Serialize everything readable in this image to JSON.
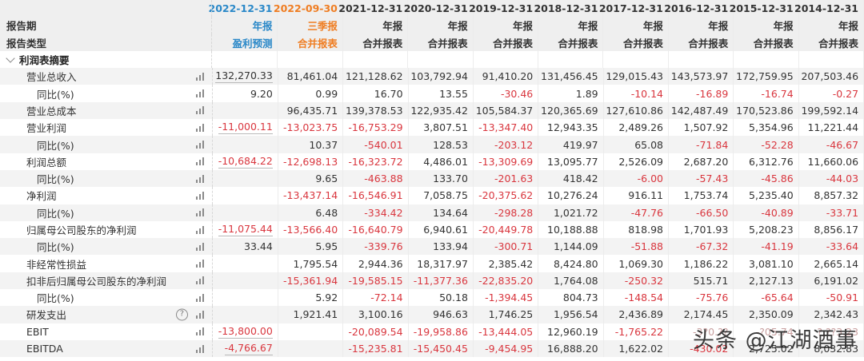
{
  "header": {
    "row_labels": {
      "period": "报告期",
      "type": "报告类型"
    },
    "columns": [
      {
        "date": "2022-12-31",
        "period": "年报",
        "type": "盈利预测",
        "color": "#2a88c8"
      },
      {
        "date": "2022-09-30",
        "period": "三季报",
        "type": "合并报表",
        "color": "#ef7d22"
      },
      {
        "date": "2021-12-31",
        "period": "年报",
        "type": "合并报表"
      },
      {
        "date": "2020-12-31",
        "period": "年报",
        "type": "合并报表"
      },
      {
        "date": "2019-12-31",
        "period": "年报",
        "type": "合并报表"
      },
      {
        "date": "2018-12-31",
        "period": "年报",
        "type": "合并报表"
      },
      {
        "date": "2017-12-31",
        "period": "年报",
        "type": "合并报表"
      },
      {
        "date": "2016-12-31",
        "period": "年报",
        "type": "合并报表"
      },
      {
        "date": "2015-12-31",
        "period": "年报",
        "type": "合并报表"
      },
      {
        "date": "2014-12-31",
        "period": "年报",
        "type": "合并报表"
      }
    ]
  },
  "section": {
    "title": "利润表摘要",
    "expanded": true
  },
  "rows": [
    {
      "label": "营业总收入",
      "level": 1,
      "values": [
        "132,270.33",
        "81,461.04",
        "121,128.62",
        "103,792.94",
        "91,410.20",
        "131,456.45",
        "129,015.43",
        "143,573.97",
        "172,759.95",
        "207,503.46"
      ]
    },
    {
      "label": "同比(%)",
      "level": 2,
      "values": [
        "9.20",
        "0.99",
        "16.70",
        "13.55",
        "-30.46",
        "1.89",
        "-10.14",
        "-16.89",
        "-16.74",
        "-0.27"
      ]
    },
    {
      "label": "营业总成本",
      "level": 1,
      "values": [
        "",
        "96,435.71",
        "139,378.53",
        "122,935.42",
        "105,584.37",
        "120,365.69",
        "127,610.86",
        "142,487.49",
        "170,523.86",
        "199,592.14"
      ]
    },
    {
      "label": "营业利润",
      "level": 1,
      "values": [
        "-11,000.11",
        "-13,023.75",
        "-16,753.29",
        "3,807.51",
        "-13,347.40",
        "12,943.35",
        "2,489.26",
        "1,507.92",
        "5,354.96",
        "11,221.44"
      ]
    },
    {
      "label": "同比(%)",
      "level": 2,
      "values": [
        "",
        "10.37",
        "-540.01",
        "128.53",
        "-203.12",
        "419.97",
        "65.08",
        "-71.84",
        "-52.28",
        "-46.67"
      ]
    },
    {
      "label": "利润总额",
      "level": 1,
      "values": [
        "-10,684.22",
        "-12,698.13",
        "-16,323.72",
        "4,486.01",
        "-13,309.69",
        "13,095.77",
        "2,526.09",
        "2,687.20",
        "6,312.76",
        "11,660.06"
      ]
    },
    {
      "label": "同比(%)",
      "level": 2,
      "values": [
        "",
        "9.65",
        "-463.88",
        "133.70",
        "-201.63",
        "418.42",
        "-6.00",
        "-57.43",
        "-45.86",
        "-44.03"
      ]
    },
    {
      "label": "净利润",
      "level": 1,
      "values": [
        "",
        "-13,437.14",
        "-16,546.91",
        "7,058.75",
        "-20,375.62",
        "10,276.24",
        "916.11",
        "1,753.74",
        "5,235.40",
        "8,857.32"
      ]
    },
    {
      "label": "同比(%)",
      "level": 2,
      "values": [
        "",
        "6.48",
        "-334.42",
        "134.64",
        "-298.28",
        "1,021.72",
        "-47.76",
        "-66.50",
        "-40.89",
        "-33.71"
      ]
    },
    {
      "label": "归属母公司股东的净利润",
      "level": 1,
      "values": [
        "-11,075.44",
        "-13,566.40",
        "-16,640.79",
        "6,940.61",
        "-20,449.78",
        "10,188.88",
        "818.98",
        "1,701.93",
        "5,208.23",
        "8,856.17"
      ]
    },
    {
      "label": "同比(%)",
      "level": 2,
      "values": [
        "33.44",
        "5.95",
        "-339.76",
        "133.94",
        "-300.71",
        "1,144.09",
        "-51.88",
        "-67.32",
        "-41.19",
        "-33.64"
      ]
    },
    {
      "label": "非经常性损益",
      "level": 1,
      "values": [
        "",
        "1,795.54",
        "2,944.36",
        "18,317.97",
        "2,385.42",
        "8,424.80",
        "1,069.30",
        "1,186.22",
        "3,081.10",
        "2,665.14"
      ]
    },
    {
      "label": "扣非后归属母公司股东的净利润",
      "level": 1,
      "values": [
        "",
        "-15,361.94",
        "-19,585.15",
        "-11,377.36",
        "-22,835.20",
        "1,764.08",
        "-250.32",
        "515.71",
        "2,127.13",
        "6,191.02"
      ]
    },
    {
      "label": "同比(%)",
      "level": 2,
      "values": [
        "",
        "5.92",
        "-72.14",
        "50.18",
        "-1,394.45",
        "804.73",
        "-148.54",
        "-75.76",
        "-65.64",
        "-50.91"
      ]
    },
    {
      "label": "研发支出",
      "level": 1,
      "help": true,
      "values": [
        "",
        "1,921.41",
        "3,100.16",
        "946.63",
        "1,746.25",
        "1,956.54",
        "2,436.89",
        "2,174.45",
        "2,350.09",
        "2,342.43"
      ]
    },
    {
      "label": "EBIT",
      "level": 1,
      "values": [
        "-13,800.00",
        "",
        "-20,089.54",
        "-19,958.86",
        "-13,444.05",
        "12,960.19",
        "-1,765.22",
        null,
        null,
        null
      ],
      "obscured_fragments": {
        "7": "-3?0.??",
        "8": "-?05.74",
        "9": "?,??3.23"
      }
    },
    {
      "label": "EBITDA",
      "level": 1,
      "values": [
        "-4,766.67",
        "",
        "-15,235.81",
        "-15,450.45",
        "-9,454.95",
        "16,888.20",
        "1,622.02",
        "-430.02",
        "2,725.02",
        "8,032.83"
      ]
    }
  ],
  "underlined_cells_col0": [
    0,
    3,
    5,
    9,
    15,
    16
  ],
  "colors": {
    "negative": "#d9363e",
    "positive": "#333333",
    "forecast": "#2a88c8",
    "quarterly": "#ef7d22"
  },
  "icons": {
    "row_chart": "bar-chart-icon",
    "help": "question-circle-icon",
    "collapse": "chevron-down-icon"
  },
  "watermark": "头条 @江湖酒事"
}
